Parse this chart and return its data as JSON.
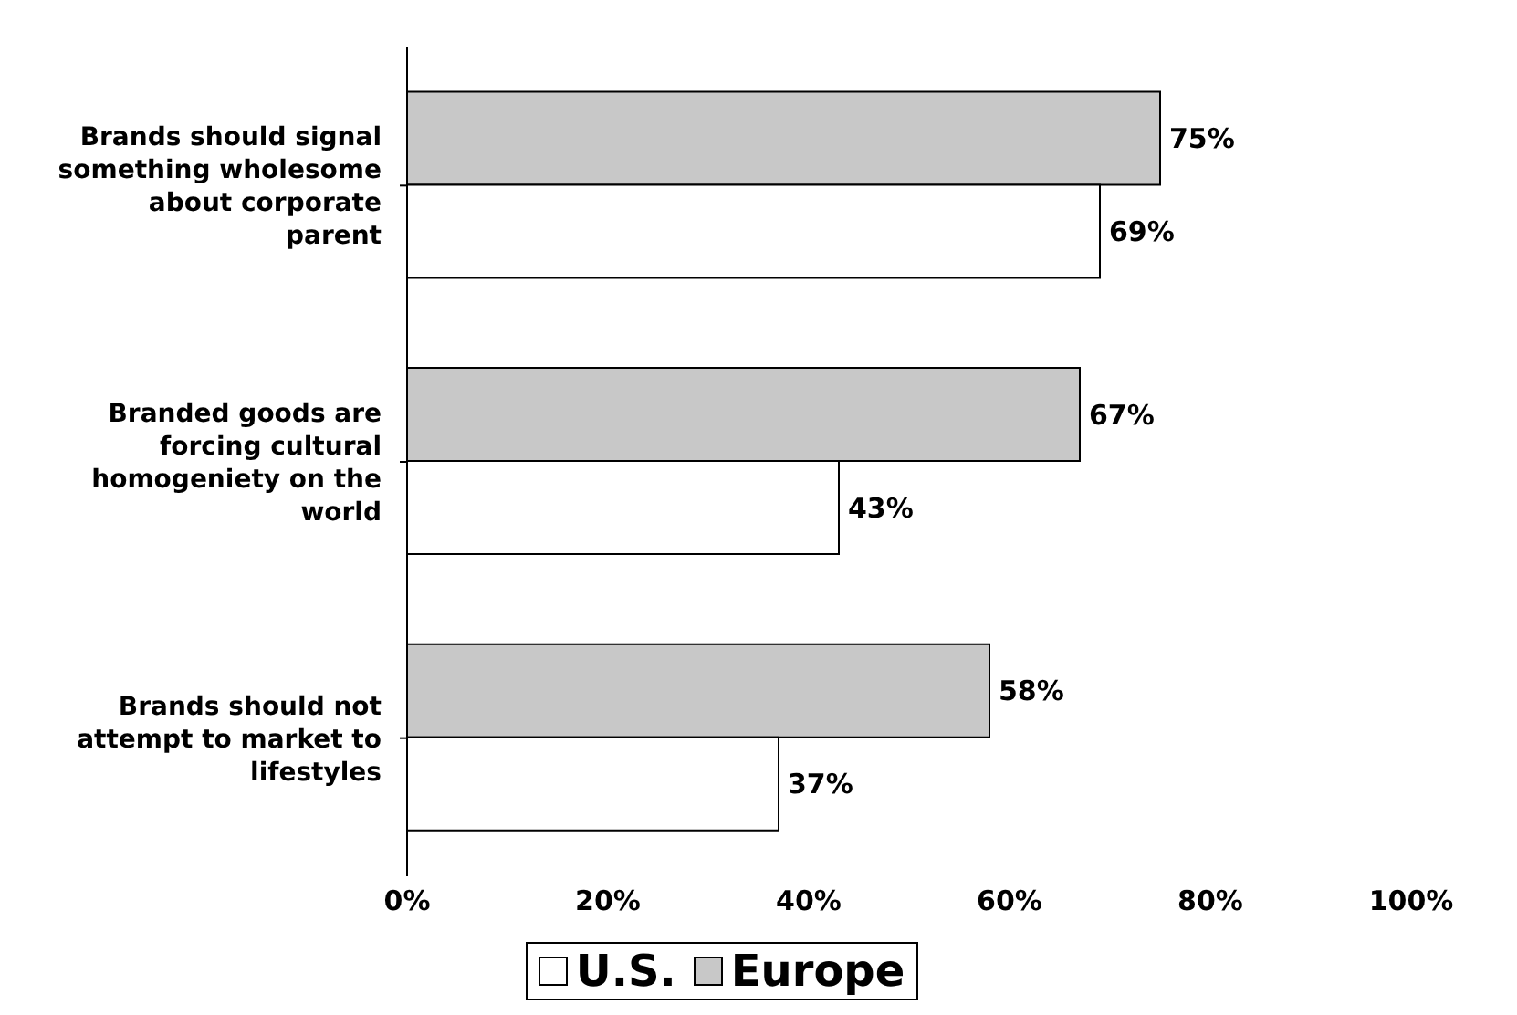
{
  "chart_data": {
    "type": "bar",
    "orientation": "horizontal",
    "categories": [
      "Brands should signal something wholesome about corporate parent",
      "Branded goods are forcing cultural homogeniety on the world",
      "Brands should not attempt to market to lifestyles"
    ],
    "series": [
      {
        "name": "Europe",
        "color": "#c8c8c8",
        "values": [
          75,
          67,
          58
        ],
        "value_labels": [
          "75%",
          "67%",
          "58%"
        ]
      },
      {
        "name": "U.S.",
        "color": "#ffffff",
        "values": [
          69,
          43,
          37
        ],
        "value_labels": [
          "69%",
          "43%",
          "37%"
        ]
      }
    ],
    "xlim": [
      0,
      100
    ],
    "xticks": [
      {
        "value": 0,
        "label": "0%"
      },
      {
        "value": 20,
        "label": "20%"
      },
      {
        "value": 40,
        "label": "40%"
      },
      {
        "value": 60,
        "label": "60%"
      },
      {
        "value": 80,
        "label": "80%"
      },
      {
        "value": 100,
        "label": "100%"
      }
    ],
    "grid": false,
    "legend": "bottom"
  }
}
